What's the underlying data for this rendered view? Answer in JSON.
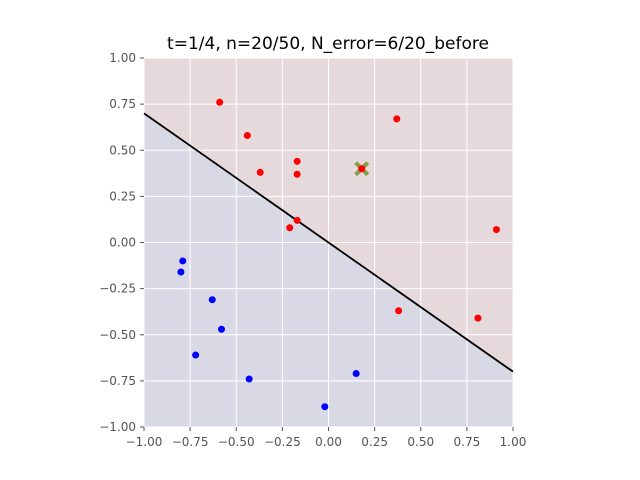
{
  "chart_data": {
    "type": "scatter",
    "title": "t=1/4, n=20/50, N_error=6/20_before",
    "xlim": [
      -1.0,
      1.0
    ],
    "ylim": [
      -1.0,
      1.0
    ],
    "x_ticks": [
      -1.0,
      -0.75,
      -0.5,
      -0.25,
      0.0,
      0.25,
      0.5,
      0.75,
      1.0
    ],
    "y_ticks": [
      -1.0,
      -0.75,
      -0.5,
      -0.25,
      0.0,
      0.25,
      0.5,
      0.75,
      1.0
    ],
    "x_tick_labels": [
      "−1.00",
      "−0.75",
      "−0.50",
      "−0.25",
      "0.00",
      "0.25",
      "0.50",
      "0.75",
      "1.00"
    ],
    "y_tick_labels": [
      "−1.00",
      "−0.75",
      "−0.50",
      "−0.25",
      "0.00",
      "0.25",
      "0.50",
      "0.75",
      "1.00"
    ],
    "grid": true,
    "regions": [
      {
        "color": "#e6d9db",
        "side": "above"
      },
      {
        "color": "#d9d9e6",
        "side": "below"
      }
    ],
    "boundary_line": {
      "x": [
        -1.0,
        1.0
      ],
      "y": [
        0.7,
        -0.7
      ],
      "color": "#000000"
    },
    "series": [
      {
        "color": "#ff0000",
        "points": [
          [
            -0.59,
            0.76
          ],
          [
            -0.44,
            0.58
          ],
          [
            0.37,
            0.67
          ],
          [
            -0.17,
            0.44
          ],
          [
            -0.37,
            0.38
          ],
          [
            -0.17,
            0.37
          ],
          [
            0.18,
            0.4
          ],
          [
            -0.17,
            0.12
          ],
          [
            -0.21,
            0.08
          ],
          [
            0.91,
            0.07
          ],
          [
            0.38,
            -0.37
          ],
          [
            0.81,
            -0.41
          ]
        ]
      },
      {
        "color": "#0000ff",
        "points": [
          [
            -0.79,
            -0.1
          ],
          [
            -0.8,
            -0.16
          ],
          [
            -0.63,
            -0.31
          ],
          [
            -0.58,
            -0.47
          ],
          [
            -0.72,
            -0.61
          ],
          [
            -0.43,
            -0.74
          ],
          [
            0.15,
            -0.71
          ],
          [
            -0.02,
            -0.89
          ]
        ]
      }
    ],
    "highlight": {
      "point": [
        0.18,
        0.4
      ],
      "marker": "x",
      "color": "#6b8e23"
    }
  }
}
